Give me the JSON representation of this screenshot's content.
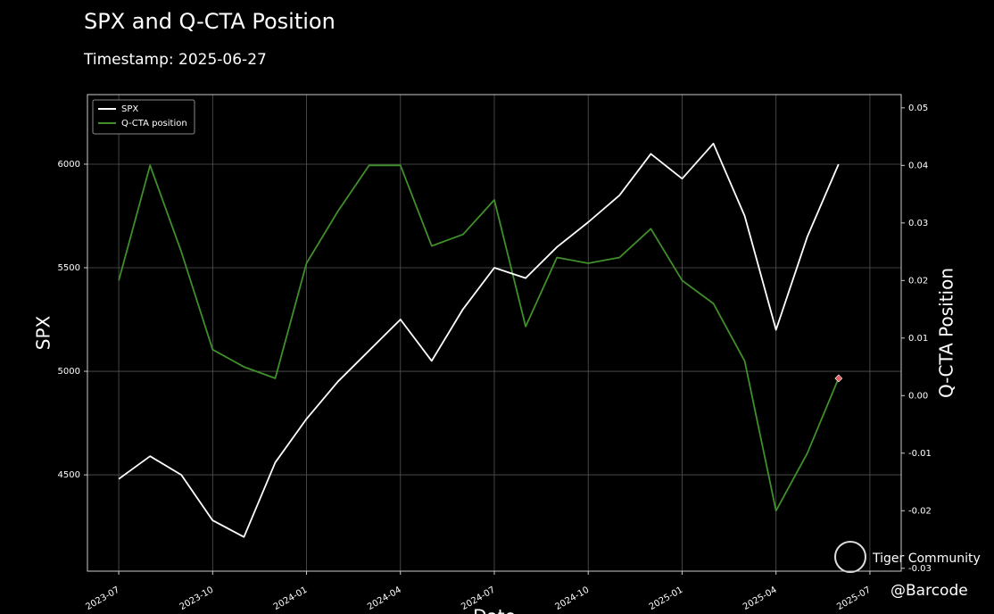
{
  "chart_data": {
    "type": "line",
    "title": "SPX and Q-CTA Position",
    "subtitle": "Timestamp: 2025-06-27",
    "x_label": "Date",
    "y_label": "SPX",
    "y2_label": "Q-CTA Position",
    "x": [
      "2023-07",
      "2023-08",
      "2023-09",
      "2023-10",
      "2023-11",
      "2023-12",
      "2024-01",
      "2024-02",
      "2024-03",
      "2024-04",
      "2024-05",
      "2024-06",
      "2024-07",
      "2024-08",
      "2024-09",
      "2024-10",
      "2024-11",
      "2024-12",
      "2025-01",
      "2025-02",
      "2025-03",
      "2025-04",
      "2025-05",
      "2025-06"
    ],
    "series": [
      {
        "name": "SPX",
        "color": "#ffffff",
        "values": [
          4480,
          4590,
          4500,
          4280,
          4200,
          4560,
          4770,
          4950,
          5100,
          5250,
          5050,
          5300,
          5500,
          5450,
          5600,
          5720,
          5850,
          6050,
          5930,
          6100,
          5750,
          5200,
          5650,
          6000
        ]
      },
      {
        "name": "Q-CTA position",
        "color": "#3f8f2a",
        "axis": "y2",
        "values": [
          0.02,
          0.04,
          0.025,
          0.008,
          0.005,
          0.003,
          0.023,
          0.032,
          0.04,
          0.04,
          0.026,
          0.028,
          0.034,
          0.012,
          0.024,
          0.023,
          0.024,
          0.029,
          0.02,
          0.016,
          0.006,
          -0.02,
          -0.01,
          0.003
        ]
      }
    ],
    "xlim": [
      "2023-06",
      "2025-08"
    ],
    "xticks": [
      "2023-07",
      "2023-10",
      "2024-01",
      "2024-04",
      "2024-07",
      "2024-10",
      "2025-01",
      "2025-04",
      "2025-07"
    ],
    "ylim": [
      4035,
      6336
    ],
    "yticks": [
      4500,
      5000,
      5500,
      6000
    ],
    "y2lim": [
      -0.0305,
      0.0523
    ],
    "y2ticks": [
      -0.03,
      -0.02,
      -0.01,
      {
        "value": 0,
        "label": "0.00"
      },
      0.01,
      0.02,
      0.03,
      0.04,
      0.05
    ],
    "grid": true,
    "legend": "upper left",
    "marker_color": "#e06060",
    "watermarks": [
      "Tiger Community",
      "@Barcode"
    ]
  }
}
